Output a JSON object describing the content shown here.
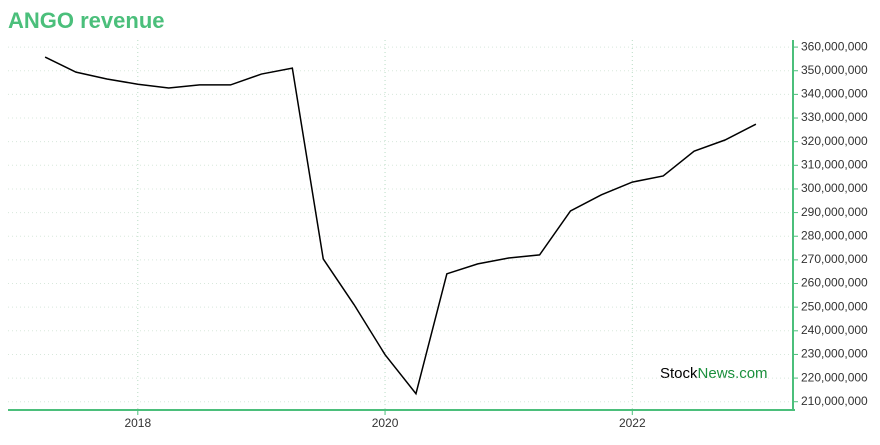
{
  "chart_data": {
    "type": "line",
    "title": "ANGO revenue",
    "x": [
      2017.25,
      2017.5,
      2017.75,
      2018.0,
      2018.25,
      2018.5,
      2018.75,
      2019.0,
      2019.25,
      2019.5,
      2019.75,
      2020.0,
      2020.25,
      2020.5,
      2020.75,
      2021.0,
      2021.25,
      2021.5,
      2021.75,
      2022.0,
      2022.25,
      2022.5,
      2022.75,
      2023.0
    ],
    "series": [
      {
        "name": "ANGO revenue",
        "color": "#000000",
        "values": [
          355800000,
          349400000,
          346500000,
          344300000,
          342700000,
          344000000,
          344000000,
          348600000,
          351100000,
          270400000,
          251000000,
          229900000,
          213400000,
          264100000,
          268300000,
          270800000,
          272100000,
          290700000,
          297500000,
          302900000,
          305500000,
          316000000,
          320700000,
          327400000
        ]
      }
    ],
    "xlim": [
      2016.95,
      2023.3
    ],
    "xticks": [
      2018,
      2020,
      2022
    ],
    "ylim": [
      206500000,
      363000000
    ],
    "yticks": [
      {
        "value": 210000000,
        "label": "210,000,000"
      },
      {
        "value": 220000000,
        "label": "220,000,000"
      },
      {
        "value": 230000000,
        "label": "230,000,000"
      },
      {
        "value": 240000000,
        "label": "240,000,000"
      },
      {
        "value": 250000000,
        "label": "250,000,000"
      },
      {
        "value": 260000000,
        "label": "260,000,000"
      },
      {
        "value": 270000000,
        "label": "270,000,000"
      },
      {
        "value": 280000000,
        "label": "280,000,000"
      },
      {
        "value": 290000000,
        "label": "290,000,000"
      },
      {
        "value": 300000000,
        "label": "300,000,000"
      },
      {
        "value": 310000000,
        "label": "310,000,000"
      },
      {
        "value": 320000000,
        "label": "320,000,000"
      },
      {
        "value": 330000000,
        "label": "330,000,000"
      },
      {
        "value": 340000000,
        "label": "340,000,000"
      },
      {
        "value": 350000000,
        "label": "350,000,000"
      },
      {
        "value": 360000000,
        "label": "360,000,000"
      }
    ],
    "grid": true,
    "watermark": [
      "Stock",
      "News.com"
    ]
  }
}
